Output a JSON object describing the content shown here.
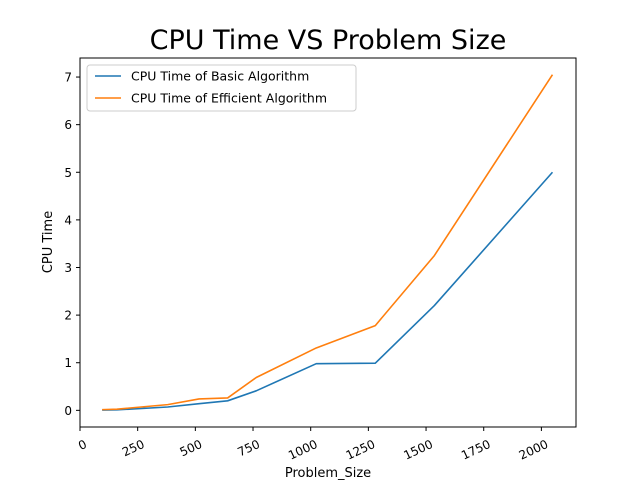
{
  "chart_data": {
    "type": "line",
    "title": "CPU Time VS Problem Size",
    "xlabel": "Problem_Size",
    "ylabel": "CPU Time",
    "xlim": [
      0,
      2150
    ],
    "ylim": [
      -0.35,
      7.4
    ],
    "xticks": [
      0,
      250,
      500,
      750,
      1000,
      1250,
      1500,
      1750,
      2000
    ],
    "yticks": [
      0,
      1,
      2,
      3,
      4,
      5,
      6,
      7
    ],
    "grid": false,
    "legend_position": "top-left",
    "series": [
      {
        "name": "CPU Time of Basic Algorithm",
        "color": "#1f77b4",
        "x": [
          96,
          160,
          380,
          516,
          640,
          764,
          1024,
          1280,
          1536,
          2048
        ],
        "y": [
          0.005,
          0.01,
          0.07,
          0.14,
          0.2,
          0.41,
          0.98,
          0.99,
          2.2,
          5.0
        ]
      },
      {
        "name": "CPU Time of Efficient Algorithm",
        "color": "#ff7f0e",
        "x": [
          96,
          160,
          380,
          516,
          640,
          764,
          1024,
          1280,
          1536,
          2048
        ],
        "y": [
          0.015,
          0.025,
          0.12,
          0.24,
          0.26,
          0.69,
          1.31,
          1.78,
          3.25,
          7.05
        ]
      }
    ]
  }
}
